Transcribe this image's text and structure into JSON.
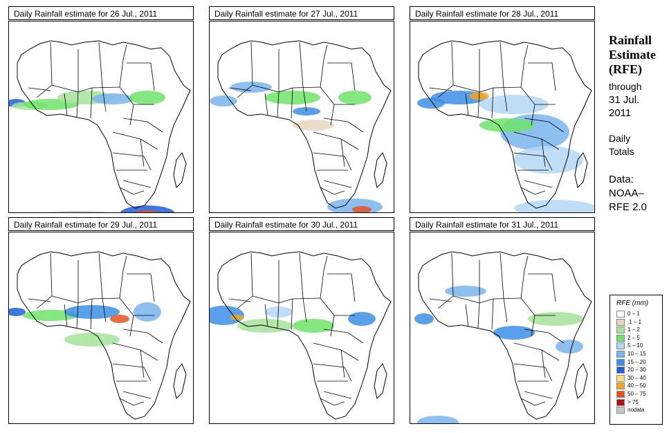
{
  "panels": [
    {
      "title": "Daily Rainfall estimate for  26 Jul., 2011"
    },
    {
      "title": "Daily Rainfall estimate for  27 Jul., 2011"
    },
    {
      "title": "Daily Rainfall estimate for  28 Jul., 2011"
    },
    {
      "title": "Daily Rainfall estimate for  29 Jul., 2011"
    },
    {
      "title": "Daily Rainfall estimate for  30 Jul., 2011"
    },
    {
      "title": "Daily Rainfall estimate for  31 Jul., 2011"
    }
  ],
  "sidebar": {
    "title_line1": "Rainfall",
    "title_line2": "Estimate",
    "title_line3": "(RFE)",
    "through_label": "through",
    "through_date_line1": "31 Jul.",
    "through_date_line2": "2011",
    "totals_line1": "Daily",
    "totals_line2": "Totals",
    "data_label": "Data:",
    "data_source_line1": "NOAA–",
    "data_source_line2": "RFE 2.0"
  },
  "legend": {
    "title": "RFE (mm)",
    "items": [
      {
        "label": "0 – 1",
        "color": "#ffffff"
      },
      {
        "label": ".1 – 1",
        "color": "#e6d6bf"
      },
      {
        "label": "1 – 2",
        "color": "#a6e39a"
      },
      {
        "label": "2 – 5",
        "color": "#6fe36a"
      },
      {
        "label": "5 – 10",
        "color": "#b4d7f5"
      },
      {
        "label": "10 – 15",
        "color": "#7ab4ee"
      },
      {
        "label": "15 – 20",
        "color": "#3c8ee6"
      },
      {
        "label": "20 – 30",
        "color": "#1e5fd8"
      },
      {
        "label": "30 – 40",
        "color": "#f7e07a"
      },
      {
        "label": "40 – 50",
        "color": "#f5a623"
      },
      {
        "label": "50 – 75",
        "color": "#e8501e"
      },
      {
        "label": "> 75",
        "color": "#b01010"
      },
      {
        "label": "nodata",
        "color": "#c8c8c8"
      }
    ]
  }
}
